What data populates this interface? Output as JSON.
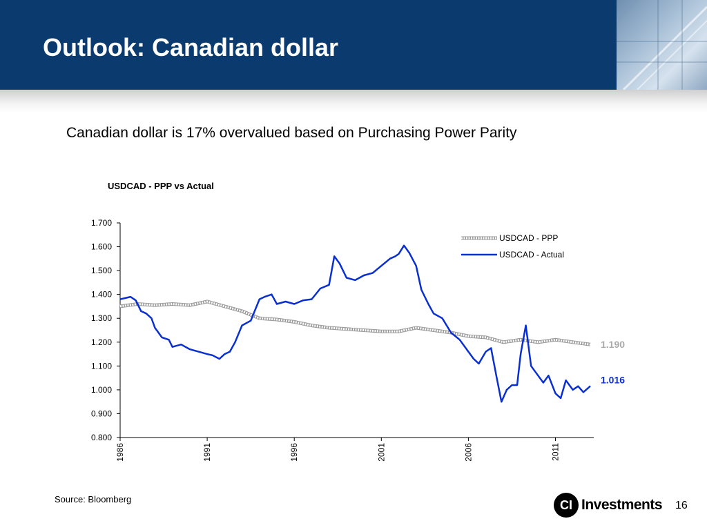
{
  "header": {
    "title": "Outlook: Canadian dollar"
  },
  "subtitle": "Canadian dollar is 17% overvalued based on Purchasing Power Parity",
  "footer": {
    "source": "Source: Bloomberg",
    "logo_mark": "CI",
    "logo_text": "Investments",
    "page_number": "16"
  },
  "colors": {
    "header_bg": "#0a3a6e",
    "actual_line": "#0a2fd0",
    "ppp_line": "#999999"
  },
  "chart_data": {
    "type": "line",
    "title": "USDCAD - PPP vs Actual",
    "xlabel": "",
    "ylabel": "",
    "ylim": [
      0.8,
      1.7
    ],
    "yticks": [
      "0.800",
      "0.900",
      "1.000",
      "1.100",
      "1.200",
      "1.300",
      "1.400",
      "1.500",
      "1.600",
      "1.700"
    ],
    "xlim": [
      1986.0,
      2013.2
    ],
    "xticks": [
      "1986",
      "1991",
      "1996",
      "2001",
      "2006",
      "2011"
    ],
    "legend_position": "top-right",
    "end_labels": {
      "ppp": "1.190",
      "actual": "1.016"
    },
    "series": [
      {
        "name": "USDCAD - PPP",
        "style": "hatched",
        "x": [
          1986.0,
          1987.0,
          1988.0,
          1989.0,
          1990.0,
          1991.0,
          1992.0,
          1993.0,
          1994.0,
          1995.0,
          1996.0,
          1997.0,
          1998.0,
          1999.0,
          2000.0,
          2001.0,
          2002.0,
          2003.0,
          2004.0,
          2005.0,
          2006.0,
          2007.0,
          2008.0,
          2009.0,
          2010.0,
          2011.0,
          2012.0,
          2013.0
        ],
        "values": [
          1.35,
          1.36,
          1.355,
          1.36,
          1.355,
          1.37,
          1.35,
          1.33,
          1.3,
          1.295,
          1.285,
          1.27,
          1.26,
          1.255,
          1.25,
          1.245,
          1.245,
          1.26,
          1.25,
          1.24,
          1.225,
          1.22,
          1.2,
          1.21,
          1.2,
          1.21,
          1.2,
          1.19
        ]
      },
      {
        "name": "USDCAD - Actual",
        "style": "solid",
        "x": [
          1986.0,
          1986.3,
          1986.6,
          1986.9,
          1987.2,
          1987.5,
          1987.8,
          1988.0,
          1988.4,
          1988.8,
          1989.0,
          1989.5,
          1990.0,
          1990.5,
          1991.0,
          1991.3,
          1991.7,
          1992.0,
          1992.3,
          1992.6,
          1993.0,
          1993.5,
          1994.0,
          1994.3,
          1994.7,
          1995.0,
          1995.5,
          1996.0,
          1996.5,
          1997.0,
          1997.5,
          1998.0,
          1998.3,
          1998.6,
          1999.0,
          1999.5,
          2000.0,
          2000.5,
          2001.0,
          2001.5,
          2001.8,
          2002.0,
          2002.3,
          2002.6,
          2003.0,
          2003.3,
          2003.7,
          2004.0,
          2004.5,
          2005.0,
          2005.5,
          2006.0,
          2006.3,
          2006.6,
          2007.0,
          2007.3,
          2007.6,
          2007.9,
          2008.2,
          2008.5,
          2008.8,
          2009.0,
          2009.3,
          2009.6,
          2010.0,
          2010.3,
          2010.6,
          2011.0,
          2011.3,
          2011.6,
          2012.0,
          2012.3,
          2012.6,
          2013.0
        ],
        "values": [
          1.38,
          1.385,
          1.39,
          1.375,
          1.33,
          1.32,
          1.3,
          1.26,
          1.22,
          1.21,
          1.18,
          1.19,
          1.17,
          1.16,
          1.15,
          1.145,
          1.13,
          1.15,
          1.16,
          1.2,
          1.27,
          1.29,
          1.38,
          1.39,
          1.4,
          1.36,
          1.37,
          1.36,
          1.375,
          1.38,
          1.425,
          1.44,
          1.56,
          1.53,
          1.47,
          1.46,
          1.48,
          1.49,
          1.52,
          1.55,
          1.56,
          1.57,
          1.605,
          1.575,
          1.52,
          1.42,
          1.36,
          1.32,
          1.3,
          1.24,
          1.21,
          1.16,
          1.13,
          1.11,
          1.16,
          1.175,
          1.06,
          0.95,
          1.0,
          1.02,
          1.02,
          1.15,
          1.27,
          1.1,
          1.06,
          1.03,
          1.06,
          0.985,
          0.965,
          1.04,
          1.0,
          1.015,
          0.99,
          1.016
        ]
      }
    ]
  }
}
